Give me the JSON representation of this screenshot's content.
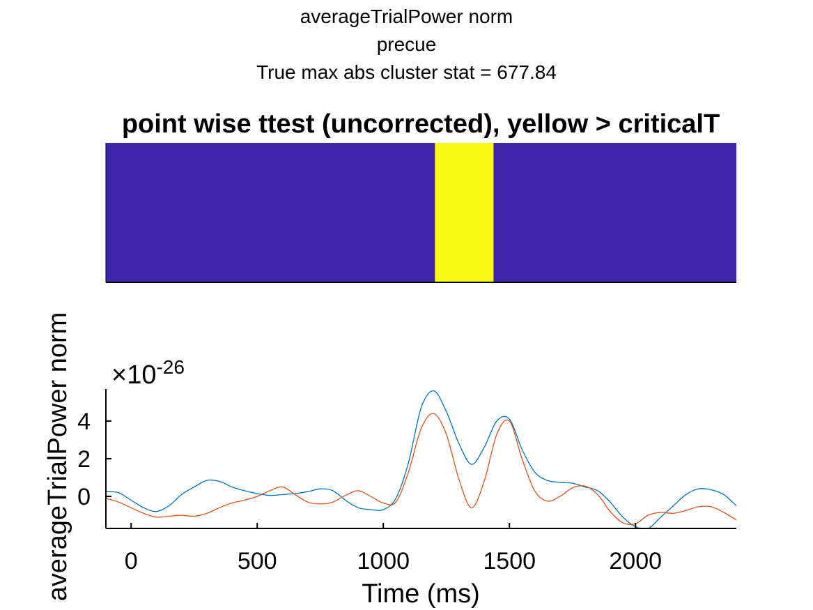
{
  "figure": {
    "title_lines": [
      "averageTrialPower norm",
      "precue",
      "True max abs cluster stat = 677.84"
    ]
  },
  "chart_data": [
    {
      "type": "heatmap",
      "title": "point wise ttest (uncorrected), yellow > criticalT",
      "x_range": [
        -100,
        2400
      ],
      "colors": {
        "below": "#3e26a8",
        "above": "#f9fb15"
      },
      "segments": [
        {
          "x_start": -100,
          "x_end": 1205,
          "significant": false
        },
        {
          "x_start": 1205,
          "x_end": 1437,
          "significant": true
        },
        {
          "x_start": 1437,
          "x_end": 2400,
          "significant": false
        }
      ]
    },
    {
      "type": "line",
      "xlabel": "Time (ms)",
      "ylabel": "averageTrialPower norm",
      "y_exponent_label": "×10",
      "y_exponent_value": "-26",
      "xlim": [
        -100,
        2400
      ],
      "ylim": [
        -1.7,
        5.7
      ],
      "xticks": [
        0,
        500,
        1000,
        1500,
        2000
      ],
      "yticks": [
        0,
        2,
        4
      ],
      "grid": false,
      "series": [
        {
          "color": "#0072bd",
          "x": [
            -100,
            -50,
            0,
            50,
            100,
            150,
            200,
            250,
            300,
            350,
            400,
            450,
            500,
            550,
            600,
            650,
            700,
            750,
            800,
            850,
            900,
            950,
            1000,
            1050,
            1100,
            1150,
            1200,
            1250,
            1300,
            1350,
            1400,
            1450,
            1500,
            1550,
            1600,
            1650,
            1700,
            1750,
            1800,
            1850,
            1900,
            1950,
            2000,
            2050,
            2100,
            2150,
            2200,
            2250,
            2300,
            2350,
            2400
          ],
          "y": [
            0.25,
            0.2,
            -0.2,
            -0.6,
            -0.8,
            -0.5,
            0.1,
            0.5,
            0.85,
            0.8,
            0.5,
            0.3,
            0.15,
            0.05,
            0.1,
            0.15,
            0.25,
            0.4,
            0.3,
            -0.2,
            -0.6,
            -0.7,
            -0.7,
            -0.1,
            1.8,
            4.7,
            5.6,
            4.5,
            2.8,
            1.7,
            2.6,
            4.0,
            4.1,
            2.5,
            1.3,
            0.85,
            0.75,
            0.7,
            0.5,
            0.3,
            -0.3,
            -1.1,
            -1.6,
            -1.7,
            -1.1,
            -0.5,
            0.1,
            0.4,
            0.35,
            0.1,
            -0.5
          ]
        },
        {
          "color": "#d95319",
          "x": [
            -100,
            -50,
            0,
            50,
            100,
            150,
            200,
            250,
            300,
            350,
            400,
            450,
            500,
            550,
            600,
            650,
            700,
            750,
            800,
            850,
            900,
            950,
            1000,
            1050,
            1100,
            1150,
            1200,
            1250,
            1300,
            1350,
            1400,
            1450,
            1500,
            1550,
            1600,
            1650,
            1700,
            1750,
            1800,
            1850,
            1900,
            1950,
            2000,
            2050,
            2100,
            2150,
            2200,
            2250,
            2300,
            2350,
            2400
          ],
          "y": [
            -0.1,
            -0.3,
            -0.6,
            -0.9,
            -1.1,
            -1.05,
            -1.0,
            -1.05,
            -0.9,
            -0.6,
            -0.35,
            -0.2,
            0.0,
            0.3,
            0.5,
            0.1,
            -0.3,
            -0.4,
            -0.3,
            0.05,
            0.3,
            0.0,
            -0.35,
            -0.3,
            1.3,
            3.6,
            4.4,
            3.3,
            0.9,
            -0.6,
            0.8,
            3.3,
            4.0,
            2.0,
            0.3,
            -0.25,
            0.0,
            0.45,
            0.55,
            0.1,
            -0.8,
            -1.4,
            -1.45,
            -1.0,
            -0.85,
            -0.9,
            -0.75,
            -0.55,
            -0.55,
            -0.85,
            -1.25
          ]
        }
      ]
    }
  ]
}
